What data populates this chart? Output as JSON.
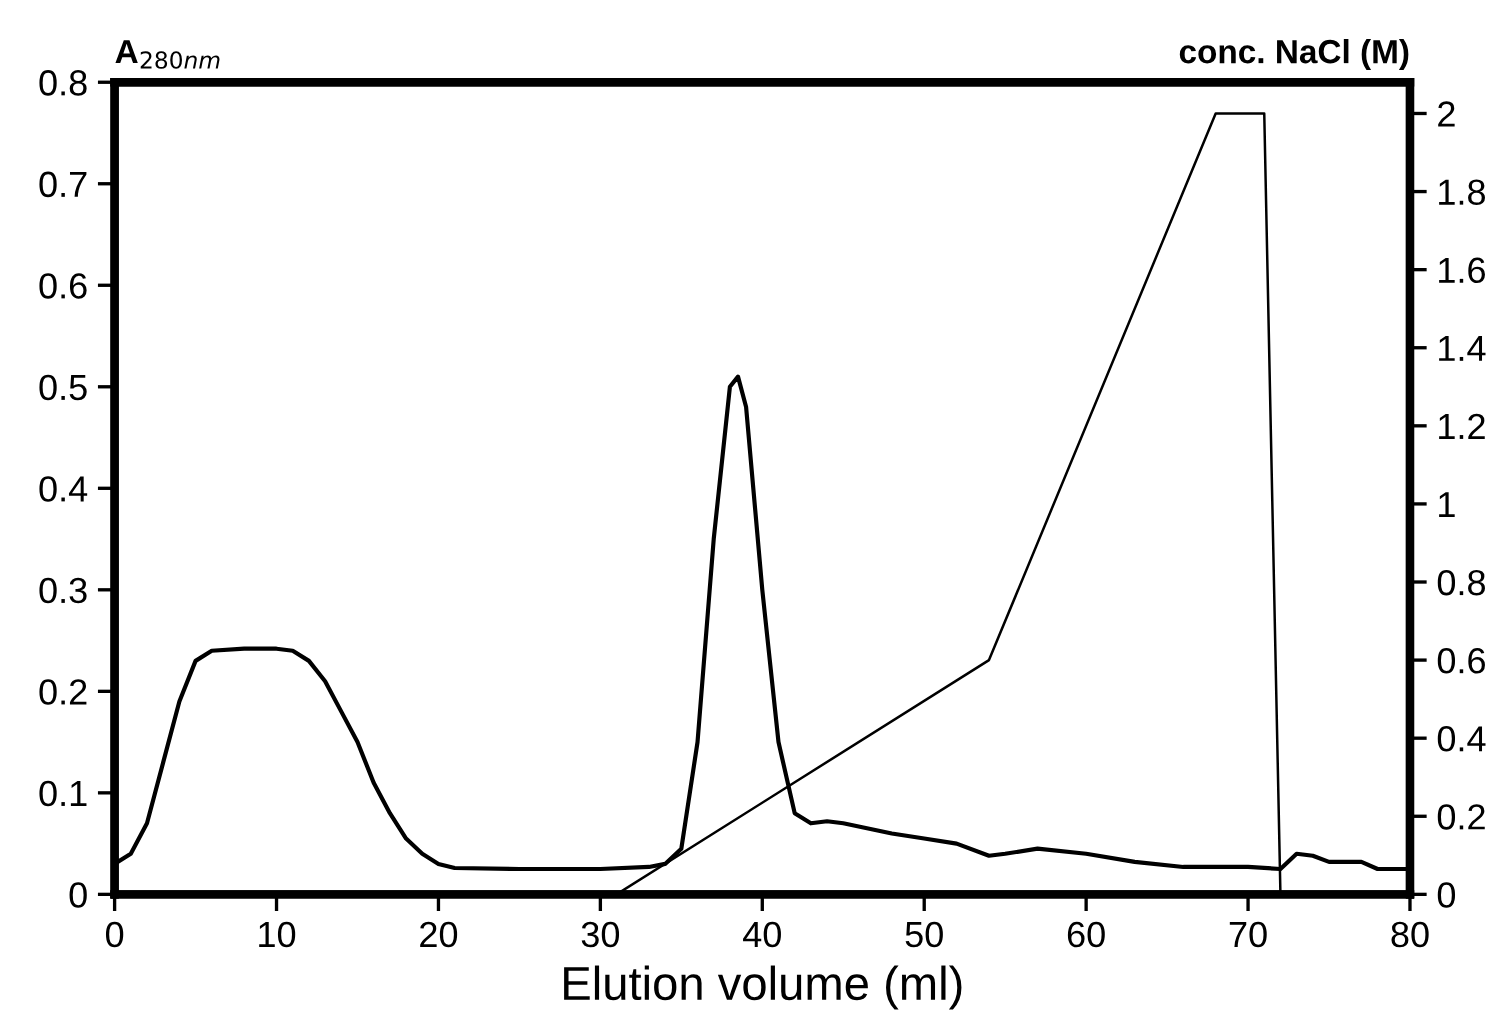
{
  "chart_data": {
    "type": "line",
    "xlabel": "Elution volume (ml)",
    "ylabel": "A$_{280nm}$",
    "y2label": "conc. NaCl (M)",
    "xlim": [
      0,
      80
    ],
    "xticks": [
      0,
      10,
      20,
      30,
      40,
      50,
      60,
      70,
      80
    ],
    "ylim": [
      0,
      0.8
    ],
    "yticks": [
      0,
      0.1,
      0.2,
      0.3,
      0.4,
      0.5,
      0.6,
      0.7,
      0.8
    ],
    "y2lim": [
      0,
      2.08
    ],
    "y2ticks": [
      0,
      0.2,
      0.4,
      0.6,
      0.8,
      1,
      1.2,
      1.4,
      1.6,
      1.8,
      2
    ],
    "grid": false,
    "legend": false,
    "line_style": "solid",
    "marker": "none",
    "series": [
      {
        "color": "#000000",
        "x": [
          0,
          1,
          2,
          3,
          4,
          5,
          6,
          8,
          10,
          11,
          12,
          13,
          14,
          15,
          16,
          17,
          18,
          19,
          20,
          21,
          25,
          30,
          33,
          34,
          35,
          36,
          37,
          38,
          38.5,
          39,
          40,
          41,
          42,
          43,
          44,
          45,
          48,
          50,
          52,
          54,
          55,
          57,
          60,
          63,
          66,
          70,
          72,
          73,
          74,
          75,
          77,
          78,
          80
        ],
        "values": [
          0.03,
          0.04,
          0.07,
          0.13,
          0.19,
          0.23,
          0.24,
          0.242,
          0.242,
          0.24,
          0.23,
          0.21,
          0.18,
          0.15,
          0.11,
          0.08,
          0.055,
          0.04,
          0.03,
          0.026,
          0.025,
          0.025,
          0.027,
          0.03,
          0.045,
          0.15,
          0.35,
          0.5,
          0.51,
          0.48,
          0.3,
          0.15,
          0.08,
          0.07,
          0.072,
          0.07,
          0.06,
          0.055,
          0.05,
          0.038,
          0.04,
          0.045,
          0.04,
          0.032,
          0.027,
          0.027,
          0.025,
          0.04,
          0.038,
          0.032,
          0.032,
          0.025,
          0.025
        ]
      },
      {
        "color": "#000000",
        "axis": "y2",
        "x": [
          31,
          54,
          68,
          71,
          72
        ],
        "values": [
          0,
          0.6,
          2.0,
          2.0,
          0
        ]
      }
    ]
  }
}
